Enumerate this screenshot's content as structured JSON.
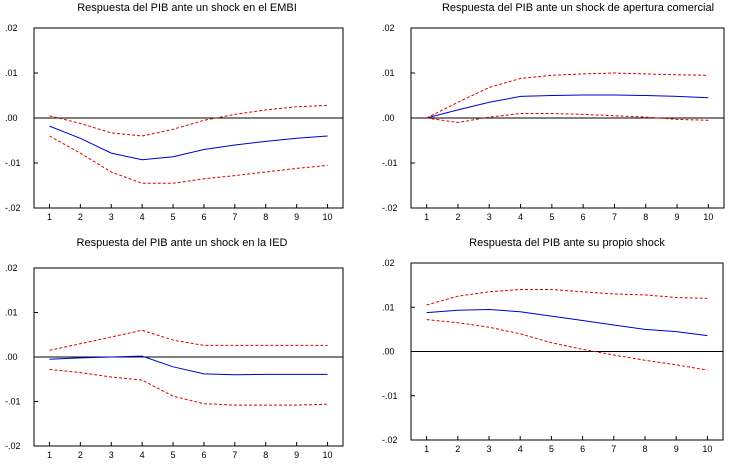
{
  "colors": {
    "response": "#0000cc",
    "band": "#dd0000",
    "axes": "#000000",
    "background": "#ffffff"
  },
  "chart_data": [
    {
      "type": "line",
      "title": "Respuesta del PIB ante un shock en el EMBI",
      "xlabel": "",
      "ylabel": "",
      "x": [
        1,
        2,
        3,
        4,
        5,
        6,
        7,
        8,
        9,
        10
      ],
      "xlim": [
        0.5,
        10.5
      ],
      "ylim": [
        -0.02,
        0.02
      ],
      "yticks": [
        0.02,
        0.01,
        0.0,
        -0.01,
        -0.02
      ],
      "ytick_labels": [
        ".02",
        ".01",
        ".00",
        "-.01",
        "-.02"
      ],
      "xtick_labels": [
        "1",
        "2",
        "3",
        "4",
        "5",
        "6",
        "7",
        "8",
        "9",
        "10"
      ],
      "grid": false,
      "zero_line": true,
      "series": [
        {
          "role": "response",
          "color": "#0000cc",
          "style": "solid",
          "values": [
            -0.0018,
            -0.0045,
            -0.0078,
            -0.0093,
            -0.0086,
            -0.007,
            -0.006,
            -0.0052,
            -0.0045,
            -0.004
          ]
        },
        {
          "role": "upper",
          "color": "#dd0000",
          "style": "dashed",
          "values": [
            0.0005,
            -0.0012,
            -0.0033,
            -0.004,
            -0.0025,
            -0.0005,
            0.0008,
            0.0018,
            0.0025,
            0.0028
          ]
        },
        {
          "role": "lower",
          "color": "#dd0000",
          "style": "dashed",
          "values": [
            -0.004,
            -0.0078,
            -0.012,
            -0.0145,
            -0.0145,
            -0.0135,
            -0.0128,
            -0.012,
            -0.0112,
            -0.0105
          ]
        }
      ]
    },
    {
      "type": "line",
      "title": "Respuesta del PIB ante un shock de apertura comercial",
      "xlabel": "",
      "ylabel": "",
      "x": [
        1,
        2,
        3,
        4,
        5,
        6,
        7,
        8,
        9,
        10
      ],
      "xlim": [
        0.5,
        10.5
      ],
      "ylim": [
        -0.02,
        0.02
      ],
      "yticks": [
        0.02,
        0.01,
        0.0,
        -0.01,
        -0.02
      ],
      "ytick_labels": [
        ".02",
        ".01",
        ".00",
        "-.01",
        "-.02"
      ],
      "xtick_labels": [
        "1",
        "2",
        "3",
        "4",
        "5",
        "6",
        "7",
        "8",
        "9",
        "10"
      ],
      "grid": false,
      "zero_line": true,
      "series": [
        {
          "role": "response",
          "color": "#0000cc",
          "style": "solid",
          "values": [
            0.0,
            0.0018,
            0.0035,
            0.0048,
            0.005,
            0.0051,
            0.0051,
            0.005,
            0.0048,
            0.0045
          ]
        },
        {
          "role": "upper",
          "color": "#dd0000",
          "style": "dashed",
          "values": [
            0.0,
            0.0035,
            0.0068,
            0.0088,
            0.0095,
            0.0098,
            0.01,
            0.0098,
            0.0096,
            0.0095
          ]
        },
        {
          "role": "lower",
          "color": "#dd0000",
          "style": "dashed",
          "values": [
            0.0,
            -0.001,
            0.0002,
            0.001,
            0.001,
            0.0008,
            0.0005,
            0.0002,
            -0.0003,
            -0.0005
          ]
        }
      ]
    },
    {
      "type": "line",
      "title": "Respuesta del PIB ante un shock en la IED",
      "xlabel": "",
      "ylabel": "",
      "x": [
        1,
        2,
        3,
        4,
        5,
        6,
        7,
        8,
        9,
        10
      ],
      "xlim": [
        0.5,
        10.5
      ],
      "ylim": [
        -0.02,
        0.02
      ],
      "yticks": [
        0.02,
        0.01,
        0.0,
        -0.01,
        -0.02
      ],
      "ytick_labels": [
        ".02",
        ".01",
        ".00",
        "-.01",
        "-.02"
      ],
      "xtick_labels": [
        "1",
        "2",
        "3",
        "4",
        "5",
        "6",
        "7",
        "8",
        "9",
        "10"
      ],
      "grid": false,
      "zero_line": true,
      "series": [
        {
          "role": "response",
          "color": "#0000cc",
          "style": "solid",
          "values": [
            -0.0005,
            -0.0002,
            0.0,
            0.0002,
            -0.0022,
            -0.0038,
            -0.004,
            -0.0039,
            -0.0039,
            -0.0039
          ]
        },
        {
          "role": "upper",
          "color": "#dd0000",
          "style": "dashed",
          "values": [
            0.0015,
            0.003,
            0.0045,
            0.006,
            0.0038,
            0.0026,
            0.0026,
            0.0026,
            0.0026,
            0.0026
          ]
        },
        {
          "role": "lower",
          "color": "#dd0000",
          "style": "dashed",
          "values": [
            -0.0028,
            -0.0035,
            -0.0045,
            -0.0052,
            -0.0088,
            -0.0105,
            -0.0108,
            -0.0108,
            -0.0108,
            -0.0106
          ]
        }
      ]
    },
    {
      "type": "line",
      "title": "Respuesta del PIB ante su propio shock",
      "xlabel": "",
      "ylabel": "",
      "x": [
        1,
        2,
        3,
        4,
        5,
        6,
        7,
        8,
        9,
        10
      ],
      "xlim": [
        0.5,
        10.5
      ],
      "ylim": [
        -0.02,
        0.02
      ],
      "yticks": [
        0.02,
        0.01,
        0.0,
        -0.01,
        -0.02
      ],
      "ytick_labels": [
        ".02",
        ".01",
        ".00",
        "-.01",
        "-.02"
      ],
      "xtick_labels": [
        "1",
        "2",
        "3",
        "4",
        "5",
        "6",
        "7",
        "8",
        "9",
        "10"
      ],
      "grid": false,
      "zero_line": true,
      "series": [
        {
          "role": "response",
          "color": "#0000cc",
          "style": "solid",
          "values": [
            0.0088,
            0.0093,
            0.0095,
            0.009,
            0.008,
            0.007,
            0.006,
            0.005,
            0.0045,
            0.0036
          ]
        },
        {
          "role": "upper",
          "color": "#dd0000",
          "style": "dashed",
          "values": [
            0.0105,
            0.0125,
            0.0135,
            0.014,
            0.014,
            0.0135,
            0.013,
            0.0128,
            0.0122,
            0.012
          ]
        },
        {
          "role": "lower",
          "color": "#dd0000",
          "style": "dashed",
          "values": [
            0.0072,
            0.0065,
            0.0055,
            0.004,
            0.002,
            0.0005,
            -0.0008,
            -0.002,
            -0.003,
            -0.0042
          ]
        }
      ]
    }
  ]
}
